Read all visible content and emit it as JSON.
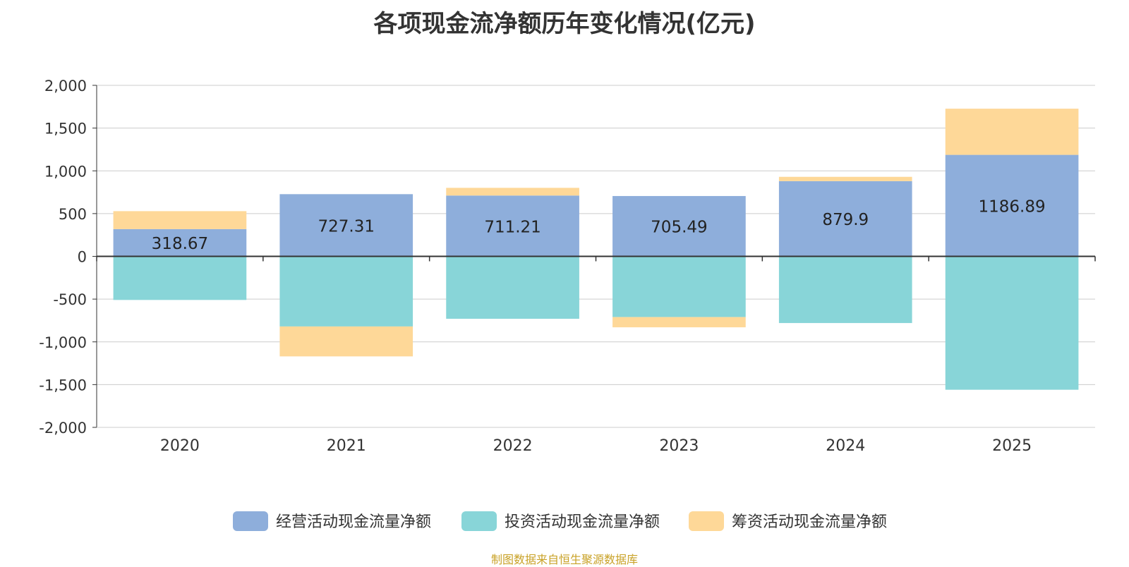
{
  "chart_data": {
    "type": "bar",
    "stacked": true,
    "title": "各项现金流净额历年变化情况(亿元)",
    "source": "制图数据来自恒生聚源数据库",
    "categories": [
      "2020",
      "2021",
      "2022",
      "2023",
      "2024",
      "2025"
    ],
    "ylim": [
      -2000,
      2000
    ],
    "yticks": [
      2000,
      1500,
      1000,
      500,
      0,
      -500,
      -1000,
      -1500,
      -2000
    ],
    "ytick_labels": [
      "2,000",
      "1,500",
      "1,000",
      "500",
      "0",
      "-500",
      "-1,000",
      "-1,500",
      "-2,000"
    ],
    "grid": true,
    "legend_position": "bottom",
    "series": [
      {
        "name": "经营活动现金流量净额",
        "color": "#8eaedb",
        "values": [
          318.67,
          727.31,
          711.21,
          705.49,
          879.9,
          1186.89
        ],
        "labels": [
          "318.67",
          "727.31",
          "711.21",
          "705.49",
          "879.9",
          "1186.89"
        ]
      },
      {
        "name": "投资活动现金流量净额",
        "color": "#88d5d8",
        "values": [
          -510,
          -820,
          -730,
          -710,
          -780,
          -1560
        ]
      },
      {
        "name": "筹资活动现金流量净额",
        "color": "#fed898",
        "values": [
          210,
          -350,
          90,
          -120,
          50,
          540
        ]
      }
    ]
  }
}
